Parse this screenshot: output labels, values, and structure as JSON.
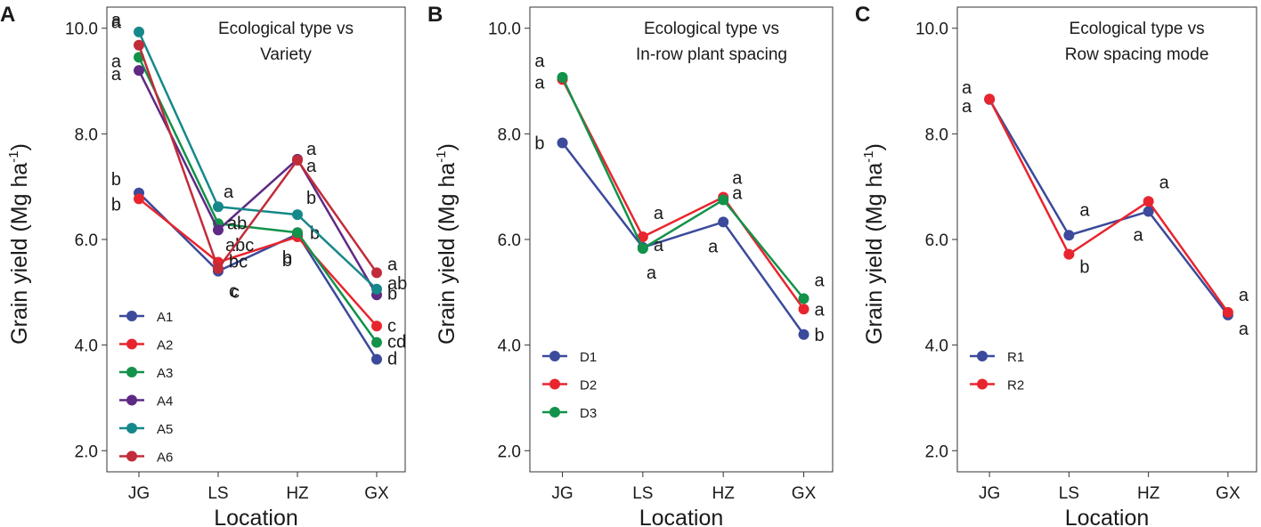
{
  "chart_data": [
    {
      "type": "line",
      "panel": "A",
      "title_lines": [
        "Ecological type vs",
        "Variety"
      ],
      "xlabel": "Location",
      "ylabel": "Grain yield",
      "ylabel_unit": "(Mg ha",
      "ylabel_sup": "-1",
      "ylabel_close": ")",
      "categories": [
        "JG",
        "LS",
        "HZ",
        "GX"
      ],
      "ylim": [
        1.6,
        10.4
      ],
      "yticks": [
        "2.0",
        "4.0",
        "6.0",
        "8.0",
        "10.0"
      ],
      "ytick_values": [
        2,
        4,
        6,
        8,
        10
      ],
      "legend_position": "bottom-left",
      "series": [
        {
          "name": "A1",
          "color": "#3b4a9b",
          "values": [
            6.88,
            5.4,
            6.1,
            3.73
          ],
          "labels": [
            "b",
            "c",
            "b",
            "d"
          ]
        },
        {
          "name": "A2",
          "color": "#e8252e",
          "values": [
            6.77,
            5.57,
            6.05,
            4.36
          ],
          "labels": [
            "b",
            "bc",
            "b",
            "c"
          ]
        },
        {
          "name": "A3",
          "color": "#12924a",
          "values": [
            9.45,
            6.3,
            6.13,
            4.05
          ],
          "labels": [
            "a",
            "abc",
            "b",
            "cd"
          ]
        },
        {
          "name": "A4",
          "color": "#5e2a84",
          "values": [
            9.2,
            6.18,
            7.52,
            4.95
          ],
          "labels": [
            "a",
            "ab",
            "a",
            "b"
          ]
        },
        {
          "name": "A5",
          "color": "#16888a",
          "values": [
            9.93,
            6.62,
            6.47,
            5.06
          ],
          "labels": [
            "a",
            "a",
            "b",
            "ab"
          ]
        },
        {
          "name": "A6",
          "color": "#c12c3a",
          "values": [
            9.68,
            5.45,
            7.5,
            5.37
          ],
          "labels": [
            "a",
            "c",
            "a",
            "a"
          ]
        }
      ]
    },
    {
      "type": "line",
      "panel": "B",
      "title_lines": [
        "Ecological type vs",
        "In-row plant spacing"
      ],
      "xlabel": "Location",
      "ylabel": "Grain yield",
      "ylabel_unit": "(Mg ha",
      "ylabel_sup": "-1",
      "ylabel_close": ")",
      "categories": [
        "JG",
        "LS",
        "HZ",
        "GX"
      ],
      "ylim": [
        1.6,
        10.4
      ],
      "yticks": [
        "2.0",
        "4.0",
        "6.0",
        "8.0",
        "10.0"
      ],
      "ytick_values": [
        2,
        4,
        6,
        8,
        10
      ],
      "legend_position": "bottom-left",
      "series": [
        {
          "name": "D1",
          "color": "#3b4a9b",
          "values": [
            7.83,
            5.85,
            6.33,
            4.2
          ],
          "labels": [
            "b",
            "a",
            "a",
            "b"
          ]
        },
        {
          "name": "D2",
          "color": "#e8252e",
          "values": [
            9.03,
            6.05,
            6.8,
            4.68
          ],
          "labels": [
            "a",
            "a",
            "a",
            "a"
          ]
        },
        {
          "name": "D3",
          "color": "#12924a",
          "values": [
            9.07,
            5.83,
            6.75,
            4.88
          ],
          "labels": [
            "a",
            "a",
            "a",
            "a"
          ]
        }
      ]
    },
    {
      "type": "line",
      "panel": "C",
      "title_lines": [
        "Ecological type vs",
        "Row spacing mode"
      ],
      "xlabel": "Location",
      "ylabel": "Grain yield",
      "ylabel_unit": "(Mg ha",
      "ylabel_sup": "-1",
      "ylabel_close": ")",
      "categories": [
        "JG",
        "LS",
        "HZ",
        "GX"
      ],
      "ylim": [
        1.6,
        10.4
      ],
      "yticks": [
        "2.0",
        "4.0",
        "6.0",
        "8.0",
        "10.0"
      ],
      "ytick_values": [
        2,
        4,
        6,
        8,
        10
      ],
      "legend_position": "bottom-left",
      "series": [
        {
          "name": "R1",
          "color": "#3b4a9b",
          "values": [
            8.65,
            6.08,
            6.53,
            4.57
          ],
          "labels": [
            "a",
            "a",
            "a",
            "a"
          ]
        },
        {
          "name": "R2",
          "color": "#e8252e",
          "values": [
            8.66,
            5.72,
            6.72,
            4.62
          ],
          "labels": [
            "a",
            "b",
            "a",
            "a"
          ]
        }
      ]
    }
  ]
}
